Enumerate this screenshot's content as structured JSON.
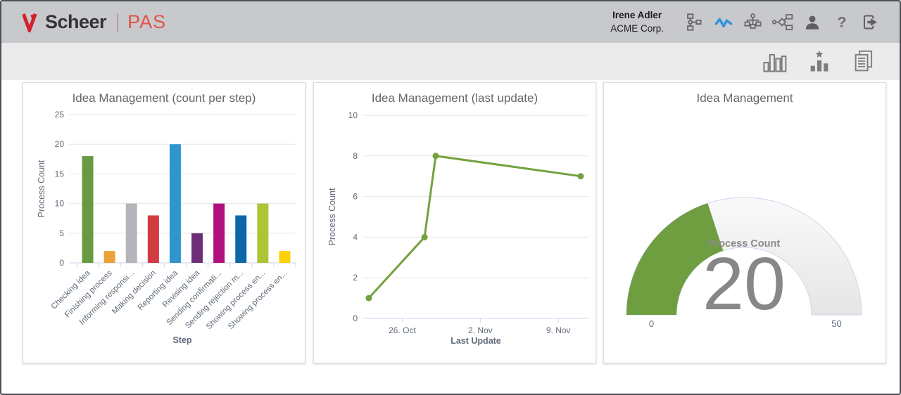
{
  "header": {
    "brand": "Scheer",
    "brand_product": "PAS",
    "brand_red": "#d4202a",
    "product_red": "#e25349",
    "background": "#c8c9cd",
    "user": {
      "name": "Irene Adler",
      "company": "ACME Corp."
    },
    "nav_icons": [
      {
        "name": "process-flow",
        "active": false
      },
      {
        "name": "monitoring-pulse",
        "active": true
      },
      {
        "name": "org-chart",
        "active": false
      },
      {
        "name": "process-model",
        "active": false
      },
      {
        "name": "user",
        "active": false
      },
      {
        "name": "help",
        "active": false
      },
      {
        "name": "logout",
        "active": false
      }
    ],
    "icon_color": "#6a6a6c",
    "active_icon_color": "#2d96da"
  },
  "toolbar": {
    "background": "#ebebeb",
    "icon_color": "#7d7d7d",
    "icons": [
      "bar-chart-view",
      "ranking-view",
      "reports-view"
    ]
  },
  "chart_style": {
    "grid_color": "#e6e6e6",
    "axis_color": "#ccd6eb",
    "tick_text_color": "#606b79",
    "axis_title_color": "#5f6a77",
    "title_color": "#666666"
  },
  "chart_data": [
    {
      "type": "bar",
      "title": "Idea Management (count per step)",
      "xlabel": "Step",
      "ylabel": "Process Count",
      "ylim": [
        0,
        25
      ],
      "yticks": [
        0,
        5,
        10,
        15,
        20,
        25
      ],
      "grid": true,
      "legend": "none",
      "categories": [
        "Checking idea",
        "Finishing process",
        "Informing responsi...",
        "Making decision",
        "Reporting idea",
        "Revising idea",
        "Sending confirmati...",
        "Sending rejection m...",
        "Showing process en...",
        "Showing process en..."
      ],
      "values": [
        18,
        2,
        10,
        8,
        20,
        5,
        10,
        8,
        10,
        2
      ],
      "bar_colors": [
        "#689a41",
        "#eba338",
        "#b7b3ba",
        "#d23b42",
        "#3095ce",
        "#6c2f75",
        "#b2107e",
        "#0b67a8",
        "#adc434",
        "#fdd205"
      ]
    },
    {
      "type": "line",
      "title": "Idea Management (last update)",
      "xlabel": "Last Update",
      "ylabel": "Process Count",
      "ylim": [
        0,
        10
      ],
      "yticks": [
        0,
        2,
        4,
        6,
        8,
        10
      ],
      "grid": true,
      "legend": "none",
      "color": "#72a23f",
      "points": [
        {
          "x_label": "23. Oct",
          "day": 0,
          "value": 1
        },
        {
          "x_label": "28. Oct",
          "day": 5,
          "value": 4
        },
        {
          "x_label": "29. Oct",
          "day": 6,
          "value": 8
        },
        {
          "x_label": "11. Nov",
          "day": 19,
          "value": 7
        }
      ],
      "xticks": [
        {
          "label": "26. Oct",
          "day": 3
        },
        {
          "label": "2. Nov",
          "day": 10
        },
        {
          "label": "9. Nov",
          "day": 17
        }
      ],
      "x_range_days": [
        -0.5,
        19.7
      ]
    },
    {
      "type": "gauge",
      "title": "Idea Management",
      "label": "Process Count",
      "value": 20,
      "min": 0,
      "max": 50,
      "color": "#6f9e41",
      "track_border": "#ccd6eb",
      "value_color": "#878787"
    }
  ]
}
